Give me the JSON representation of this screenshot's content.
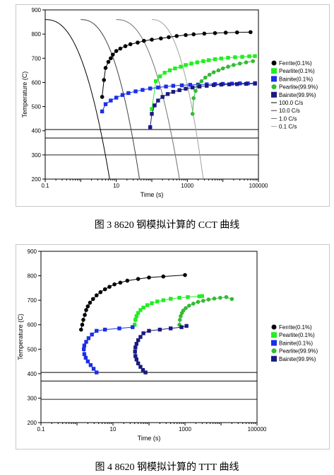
{
  "colors": {
    "ferrite": "#000000",
    "pearlite_start": "#22ee22",
    "bainite_start": "#1a2fe6",
    "pearlite_end": "#33bb33",
    "bainite_end": "#1a1a80",
    "frame": "#000000"
  },
  "figure1": {
    "caption": "图 3    8620 钢模拟计算的 CCT 曲线",
    "chart_data": {
      "type": "scatter",
      "xlabel": "Time (s)",
      "ylabel": "Temperature (C)",
      "xscale": "log",
      "xlim": [
        0.1,
        100000
      ],
      "ylim": [
        200,
        900
      ],
      "x_ticks": [
        "0.1",
        "10",
        "1000",
        "100000"
      ],
      "y_ticks": [
        "200",
        "300",
        "400",
        "500",
        "600",
        "700",
        "800",
        "900"
      ],
      "legend_position": "right",
      "grid": false,
      "hlines": [
        405,
        370,
        300
      ],
      "series": [
        {
          "name": "Ferrite(0.1%)",
          "marker": "circle",
          "color_key": "ferrite",
          "x": [
            4,
            4.5,
            5,
            6,
            7,
            8,
            10,
            13,
            18,
            25,
            40,
            60,
            100,
            180,
            300,
            500,
            900,
            1500,
            3000,
            6000,
            12000,
            25000,
            60000
          ],
          "y": [
            540,
            610,
            660,
            685,
            700,
            715,
            730,
            740,
            750,
            758,
            765,
            772,
            777,
            782,
            787,
            792,
            796,
            799,
            802,
            804,
            806,
            807,
            808
          ]
        },
        {
          "name": "Pearlite(0.1%)",
          "marker": "square",
          "color_key": "pearlite_start",
          "x": [
            100,
            130,
            170,
            230,
            320,
            450,
            650,
            900,
            1300,
            1900,
            2800,
            4000,
            6000,
            9000,
            14000,
            22000,
            35000,
            55000,
            80000
          ],
          "y": [
            490,
            605,
            625,
            640,
            650,
            658,
            665,
            672,
            678,
            683,
            688,
            692,
            696,
            699,
            702,
            704,
            706,
            708,
            709
          ]
        },
        {
          "name": "Bainite(0.1%)",
          "marker": "square",
          "color_key": "bainite_start",
          "x": [
            4,
            5,
            7,
            10,
            15,
            22,
            35,
            55,
            90,
            150,
            250,
            400,
            700,
            1200,
            2000,
            3500,
            6000,
            10000,
            18000,
            30000,
            50000,
            80000
          ],
          "y": [
            480,
            510,
            525,
            537,
            548,
            556,
            563,
            569,
            575,
            579,
            583,
            586,
            588,
            590,
            591,
            592,
            593,
            594,
            595,
            596,
            596,
            597
          ]
        },
        {
          "name": "Pearlite(99.9%)",
          "marker": "circle",
          "color_key": "pearlite_end",
          "x": [
            1400,
            1500,
            1700,
            2000,
            2500,
            3200,
            4200,
            5500,
            7500,
            10000,
            14000,
            20000,
            30000,
            45000,
            70000
          ],
          "y": [
            470,
            535,
            565,
            585,
            605,
            620,
            632,
            642,
            650,
            658,
            665,
            672,
            678,
            683,
            688
          ]
        },
        {
          "name": "Bainite(99.9%)",
          "marker": "square",
          "color_key": "bainite_end",
          "x": [
            90,
            100,
            120,
            150,
            200,
            280,
            400,
            600,
            900,
            1400,
            2200,
            3500,
            5500,
            9000,
            15000,
            25000,
            45000,
            80000
          ],
          "y": [
            415,
            470,
            505,
            525,
            540,
            552,
            561,
            568,
            574,
            579,
            583,
            586,
            589,
            591,
            592,
            593,
            594,
            595
          ]
        }
      ],
      "cooling_curves": [
        {
          "name": "100.0 C/s",
          "color": "#000000",
          "start_x": 0.1,
          "end_x": 6.5
        },
        {
          "name": "10.0 C/s",
          "color": "#404040",
          "start_x": 1.0,
          "end_x": 45
        },
        {
          "name": "1.0 C/s",
          "color": "#707070",
          "start_x": 10,
          "end_x": 600
        },
        {
          "name": "0.1 C/s",
          "color": "#a0a0a0",
          "start_x": 100,
          "end_x": 2800
        }
      ]
    }
  },
  "figure2": {
    "caption": "图 4 8620 钢模拟计算的 TTT 曲线",
    "chart_data": {
      "type": "scatter",
      "xlabel": "Time (s)",
      "ylabel": "Temperature (C)",
      "xscale": "log",
      "xlim": [
        0.1,
        100000
      ],
      "ylim": [
        200,
        900
      ],
      "x_ticks": [
        "0.1",
        "10",
        "1000",
        "100000"
      ],
      "y_ticks": [
        "200",
        "300",
        "400",
        "500",
        "600",
        "700",
        "800",
        "900"
      ],
      "legend_position": "right",
      "grid": false,
      "hlines": [
        405,
        370,
        295
      ],
      "series": [
        {
          "name": "Ferrite(0.1%)",
          "marker": "circle",
          "color_key": "ferrite",
          "x": [
            1.3,
            1.4,
            1.5,
            1.65,
            1.8,
            2,
            2.3,
            2.8,
            3.5,
            4.5,
            6,
            8,
            11,
            16,
            25,
            50,
            100,
            250,
            1000
          ],
          "y": [
            580,
            600,
            620,
            640,
            660,
            675,
            690,
            705,
            720,
            733,
            745,
            755,
            765,
            772,
            780,
            787,
            793,
            797,
            803
          ]
        },
        {
          "name": "Pearlite(0.1%)",
          "marker": "square",
          "color_key": "pearlite_start",
          "x": [
            40,
            42,
            45,
            50,
            58,
            70,
            90,
            120,
            170,
            250,
            400,
            700,
            1200,
            2500,
            3000
          ],
          "y": [
            600,
            620,
            635,
            648,
            660,
            670,
            680,
            688,
            695,
            700,
            706,
            710,
            713,
            716,
            717
          ]
        },
        {
          "name": "Bainite(0.1%)",
          "marker": "square",
          "color_key": "bainite_start",
          "x": [
            3.5,
            2.9,
            2.4,
            2.0,
            1.75,
            1.6,
            1.55,
            1.6,
            1.8,
            2.1,
            2.6,
            3.5,
            6,
            15,
            35
          ],
          "y": [
            405,
            420,
            435,
            450,
            465,
            480,
            500,
            515,
            530,
            545,
            560,
            575,
            580,
            585,
            590
          ]
        },
        {
          "name": "Pearlite(99.9%)",
          "marker": "circle",
          "color_key": "pearlite_end",
          "x": [
            700,
            720,
            760,
            820,
            900,
            1050,
            1300,
            1700,
            2300,
            3200,
            4500,
            6500,
            9500,
            14000,
            20000
          ],
          "y": [
            600,
            620,
            635,
            648,
            658,
            668,
            678,
            686,
            693,
            698,
            703,
            707,
            710,
            713,
            705
          ]
        },
        {
          "name": "Bainite(99.9%)",
          "marker": "square",
          "color_key": "bainite_end",
          "x": [
            80,
            68,
            58,
            50,
            45,
            42,
            41,
            42,
            45,
            50,
            58,
            70,
            100,
            200,
            400,
            800,
            1100
          ],
          "y": [
            405,
            415,
            428,
            442,
            458,
            472,
            490,
            507,
            522,
            537,
            550,
            565,
            575,
            580,
            585,
            590,
            595
          ]
        }
      ]
    }
  }
}
